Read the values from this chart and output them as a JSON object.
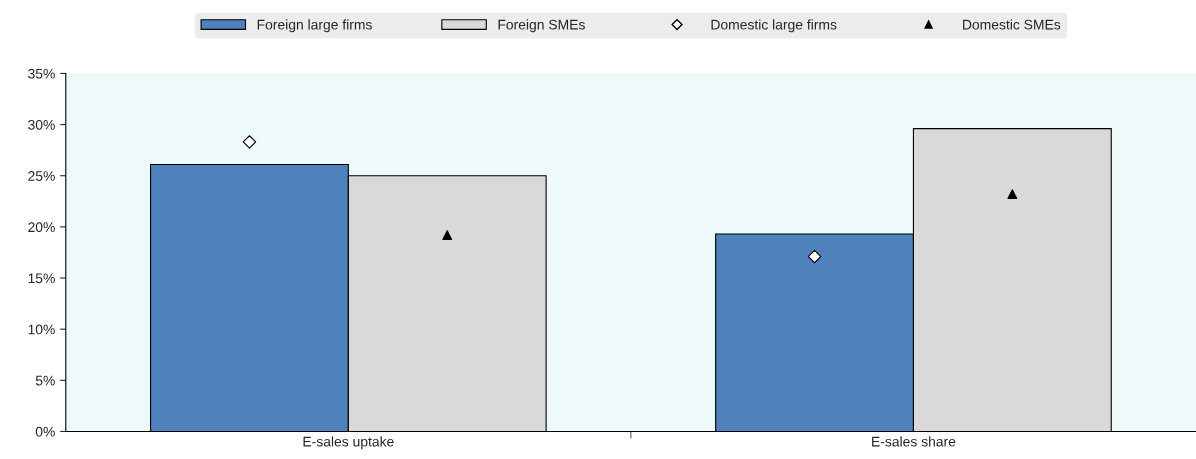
{
  "chart_data": {
    "type": "bar",
    "categories": [
      "E-sales uptake",
      "E-sales share"
    ],
    "series": [
      {
        "name": "Foreign large firms",
        "color": "#4f81bd",
        "values": [
          26.1,
          19.3
        ]
      },
      {
        "name": "Foreign SMEs",
        "color": "#d9d9d9",
        "values": [
          25.0,
          29.6
        ]
      },
      {
        "name": "Domestic large firms",
        "type": "scatter",
        "marker": "diamond",
        "color": "#ffffff",
        "values": [
          28.3,
          17.1
        ]
      },
      {
        "name": "Domestic SMEs",
        "type": "scatter",
        "marker": "triangle",
        "color": "#000000",
        "values": [
          19.2,
          23.2
        ]
      }
    ],
    "ylim": [
      0,
      35
    ],
    "yticks": [
      {
        "value": 0,
        "label": "0%"
      },
      {
        "value": 5,
        "label": "5%"
      },
      {
        "value": 10,
        "label": "10%"
      },
      {
        "value": 15,
        "label": "15%"
      },
      {
        "value": 20,
        "label": "20%"
      },
      {
        "value": 25,
        "label": "25%"
      },
      {
        "value": 30,
        "label": "30%"
      },
      {
        "value": 35,
        "label": "35%"
      }
    ],
    "grid": false,
    "legend": "top"
  }
}
